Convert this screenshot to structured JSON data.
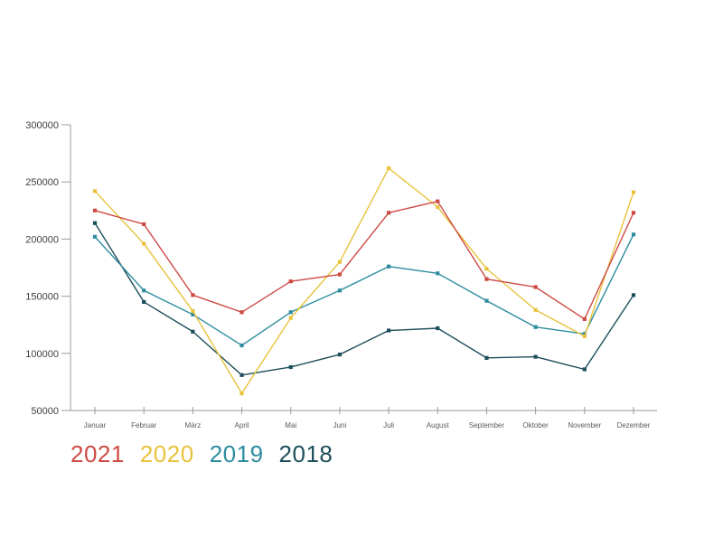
{
  "chart_data": {
    "type": "line",
    "title": "",
    "xlabel": "",
    "ylabel": "",
    "categories": [
      "Januar",
      "Februar",
      "März",
      "April",
      "Mai",
      "Juni",
      "Juli",
      "August",
      "September",
      "Oktober",
      "November",
      "Dezember"
    ],
    "series": [
      {
        "name": "2021",
        "color": "#cd4a44",
        "values": [
          225000,
          213000,
          151000,
          136000,
          163000,
          169000,
          223000,
          233000,
          165000,
          158000,
          130000,
          223000
        ]
      },
      {
        "name": "2020",
        "color": "#e8c23d",
        "values": [
          242000,
          196000,
          137000,
          65000,
          131000,
          180000,
          262000,
          228000,
          174000,
          138000,
          115000,
          241000
        ]
      },
      {
        "name": "2019",
        "color": "#2d8ca0",
        "values": [
          202000,
          155000,
          134000,
          107000,
          136000,
          155000,
          176000,
          170000,
          146000,
          123000,
          117000,
          204000
        ]
      },
      {
        "name": "2018",
        "color": "#1d4e5b",
        "values": [
          214000,
          145000,
          119000,
          81000,
          88000,
          99000,
          120000,
          122000,
          96000,
          97000,
          86000,
          151000
        ]
      }
    ],
    "ylim": [
      50000,
      300000
    ],
    "y_ticks": [
      300000,
      250000,
      200000,
      150000,
      100000,
      50000
    ],
    "y_tick_labels": [
      "300000",
      "250000",
      "200000",
      "150000",
      "100000",
      "50000"
    ],
    "grid": false,
    "legend_position": "bottom-left",
    "marker": "square",
    "axis_color": "#9b9b9b",
    "y_label_color": "#3f3f3f",
    "x_label_color": "#5a5a5a"
  },
  "legend": {
    "items": [
      "2021",
      "2020",
      "2019",
      "2018"
    ]
  }
}
